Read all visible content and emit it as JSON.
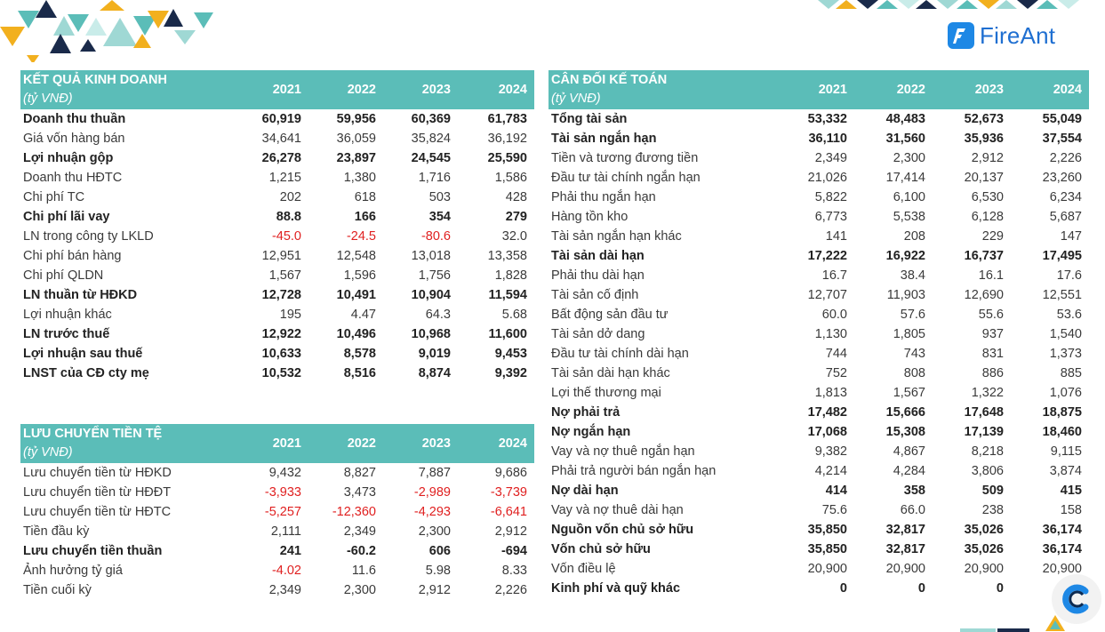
{
  "brand": {
    "name": "FireAnt"
  },
  "colors": {
    "header_bg": "#5bbdb8",
    "negative": "#e02020",
    "brand_blue": "#1f6fd1"
  },
  "years": [
    "2021",
    "2022",
    "2023",
    "2024"
  ],
  "income_statement": {
    "title": "KẾT QUẢ KINH DOANH",
    "unit": "(tỷ VNĐ)",
    "rows": [
      {
        "label": "Doanh thu thuần",
        "bold": true,
        "values": [
          "60,919",
          "59,956",
          "60,369",
          "61,783"
        ]
      },
      {
        "label": "Giá vốn hàng bán",
        "bold": false,
        "values": [
          "34,641",
          "36,059",
          "35,824",
          "36,192"
        ]
      },
      {
        "label": "Lợi nhuận gộp",
        "bold": true,
        "values": [
          "26,278",
          "23,897",
          "24,545",
          "25,590"
        ]
      },
      {
        "label": "Doanh thu HĐTC",
        "bold": false,
        "values": [
          "1,215",
          "1,380",
          "1,716",
          "1,586"
        ]
      },
      {
        "label": "Chi phí TC",
        "bold": false,
        "values": [
          "202",
          "618",
          "503",
          "428"
        ]
      },
      {
        "label": "Chi phí lãi vay",
        "bold": true,
        "values": [
          "88.8",
          "166",
          "354",
          "279"
        ]
      },
      {
        "label": "LN trong công ty LKLD",
        "bold": false,
        "values": [
          "-45.0",
          "-24.5",
          "-80.6",
          "32.0"
        ]
      },
      {
        "label": "Chi phí bán hàng",
        "bold": false,
        "values": [
          "12,951",
          "12,548",
          "13,018",
          "13,358"
        ]
      },
      {
        "label": "Chi phí QLDN",
        "bold": false,
        "values": [
          "1,567",
          "1,596",
          "1,756",
          "1,828"
        ]
      },
      {
        "label": "LN thuần từ HĐKD",
        "bold": true,
        "values": [
          "12,728",
          "10,491",
          "10,904",
          "11,594"
        ]
      },
      {
        "label": "Lợi nhuận khác",
        "bold": false,
        "values": [
          "195",
          "4.47",
          "64.3",
          "5.68"
        ]
      },
      {
        "label": "LN trước thuế",
        "bold": true,
        "values": [
          "12,922",
          "10,496",
          "10,968",
          "11,600"
        ]
      },
      {
        "label": "Lợi nhuận sau thuế",
        "bold": true,
        "values": [
          "10,633",
          "8,578",
          "9,019",
          "9,453"
        ]
      },
      {
        "label": "LNST của CĐ cty mẹ",
        "bold": true,
        "values": [
          "10,532",
          "8,516",
          "8,874",
          "9,392"
        ]
      }
    ]
  },
  "cash_flow": {
    "title": "LƯU CHUYỂN TIỀN TỆ",
    "unit": "(tỷ VNĐ)",
    "rows": [
      {
        "label": "Lưu chuyển tiền từ HĐKD",
        "bold": false,
        "values": [
          "9,432",
          "8,827",
          "7,887",
          "9,686"
        ]
      },
      {
        "label": "Lưu chuyển tiền từ HĐĐT",
        "bold": false,
        "values": [
          "-3,933",
          "3,473",
          "-2,989",
          "-3,739"
        ]
      },
      {
        "label": "Lưu chuyển tiền từ HĐTC",
        "bold": false,
        "values": [
          "-5,257",
          "-12,360",
          "-4,293",
          "-6,641"
        ]
      },
      {
        "label": "Tiền đầu kỳ",
        "bold": false,
        "values": [
          "2,111",
          "2,349",
          "2,300",
          "2,912"
        ]
      },
      {
        "label": "Lưu chuyển tiền thuần",
        "bold": true,
        "values": [
          "241",
          "-60.2",
          "606",
          "-694"
        ]
      },
      {
        "label": "Ảnh hưởng tỷ giá",
        "bold": false,
        "values": [
          "-4.02",
          "11.6",
          "5.98",
          "8.33"
        ]
      },
      {
        "label": "Tiền cuối kỳ",
        "bold": false,
        "values": [
          "2,349",
          "2,300",
          "2,912",
          "2,226"
        ]
      }
    ]
  },
  "balance_sheet": {
    "title": "CÂN ĐỐI KẾ TOÁN",
    "unit": "(tỷ VNĐ)",
    "rows": [
      {
        "label": "Tổng tài sản",
        "bold": true,
        "values": [
          "53,332",
          "48,483",
          "52,673",
          "55,049"
        ]
      },
      {
        "label": "Tài sản ngắn hạn",
        "bold": true,
        "values": [
          "36,110",
          "31,560",
          "35,936",
          "37,554"
        ]
      },
      {
        "label": "Tiền và tương đương tiền",
        "bold": false,
        "values": [
          "2,349",
          "2,300",
          "2,912",
          "2,226"
        ]
      },
      {
        "label": "Đầu tư tài chính ngắn hạn",
        "bold": false,
        "values": [
          "21,026",
          "17,414",
          "20,137",
          "23,260"
        ]
      },
      {
        "label": "Phải thu ngắn hạn",
        "bold": false,
        "values": [
          "5,822",
          "6,100",
          "6,530",
          "6,234"
        ]
      },
      {
        "label": "Hàng tồn kho",
        "bold": false,
        "values": [
          "6,773",
          "5,538",
          "6,128",
          "5,687"
        ]
      },
      {
        "label": "Tài sản ngắn hạn khác",
        "bold": false,
        "values": [
          "141",
          "208",
          "229",
          "147"
        ]
      },
      {
        "label": "Tài sản dài hạn",
        "bold": true,
        "values": [
          "17,222",
          "16,922",
          "16,737",
          "17,495"
        ]
      },
      {
        "label": "Phải thu dài hạn",
        "bold": false,
        "values": [
          "16.7",
          "38.4",
          "16.1",
          "17.6"
        ]
      },
      {
        "label": "Tài sản cố định",
        "bold": false,
        "values": [
          "12,707",
          "11,903",
          "12,690",
          "12,551"
        ]
      },
      {
        "label": "Bất động sản đầu tư",
        "bold": false,
        "values": [
          "60.0",
          "57.6",
          "55.6",
          "53.6"
        ]
      },
      {
        "label": "Tài sản dở dang",
        "bold": false,
        "values": [
          "1,130",
          "1,805",
          "937",
          "1,540"
        ]
      },
      {
        "label": "Đầu tư tài chính dài hạn",
        "bold": false,
        "values": [
          "744",
          "743",
          "831",
          "1,373"
        ]
      },
      {
        "label": "Tài sản dài hạn khác",
        "bold": false,
        "values": [
          "752",
          "808",
          "886",
          "885"
        ]
      },
      {
        "label": "Lợi thế thương mại",
        "bold": false,
        "values": [
          "1,813",
          "1,567",
          "1,322",
          "1,076"
        ]
      },
      {
        "label": "Nợ phải trả",
        "bold": true,
        "values": [
          "17,482",
          "15,666",
          "17,648",
          "18,875"
        ]
      },
      {
        "label": "Nợ ngắn hạn",
        "bold": true,
        "values": [
          "17,068",
          "15,308",
          "17,139",
          "18,460"
        ]
      },
      {
        "label": "Vay và nợ thuê ngắn hạn",
        "bold": false,
        "values": [
          "9,382",
          "4,867",
          "8,218",
          "9,115"
        ]
      },
      {
        "label": "Phải trả người bán ngắn hạn",
        "bold": false,
        "values": [
          "4,214",
          "4,284",
          "3,806",
          "3,874"
        ]
      },
      {
        "label": "Nợ dài hạn",
        "bold": true,
        "values": [
          "414",
          "358",
          "509",
          "415"
        ]
      },
      {
        "label": "Vay và nợ thuê dài hạn",
        "bold": false,
        "values": [
          "75.6",
          "66.0",
          "238",
          "158"
        ]
      },
      {
        "label": "Nguồn vốn chủ sở hữu",
        "bold": true,
        "values": [
          "35,850",
          "32,817",
          "35,026",
          "36,174"
        ]
      },
      {
        "label": "Vốn chủ sở hữu",
        "bold": true,
        "values": [
          "35,850",
          "32,817",
          "35,026",
          "36,174"
        ]
      },
      {
        "label": "Vốn điều lệ",
        "bold": false,
        "values": [
          "20,900",
          "20,900",
          "20,900",
          "20,900"
        ]
      },
      {
        "label": "Kinh phí và quỹ khác",
        "bold": true,
        "values": [
          "0",
          "0",
          "0",
          ""
        ]
      }
    ]
  }
}
